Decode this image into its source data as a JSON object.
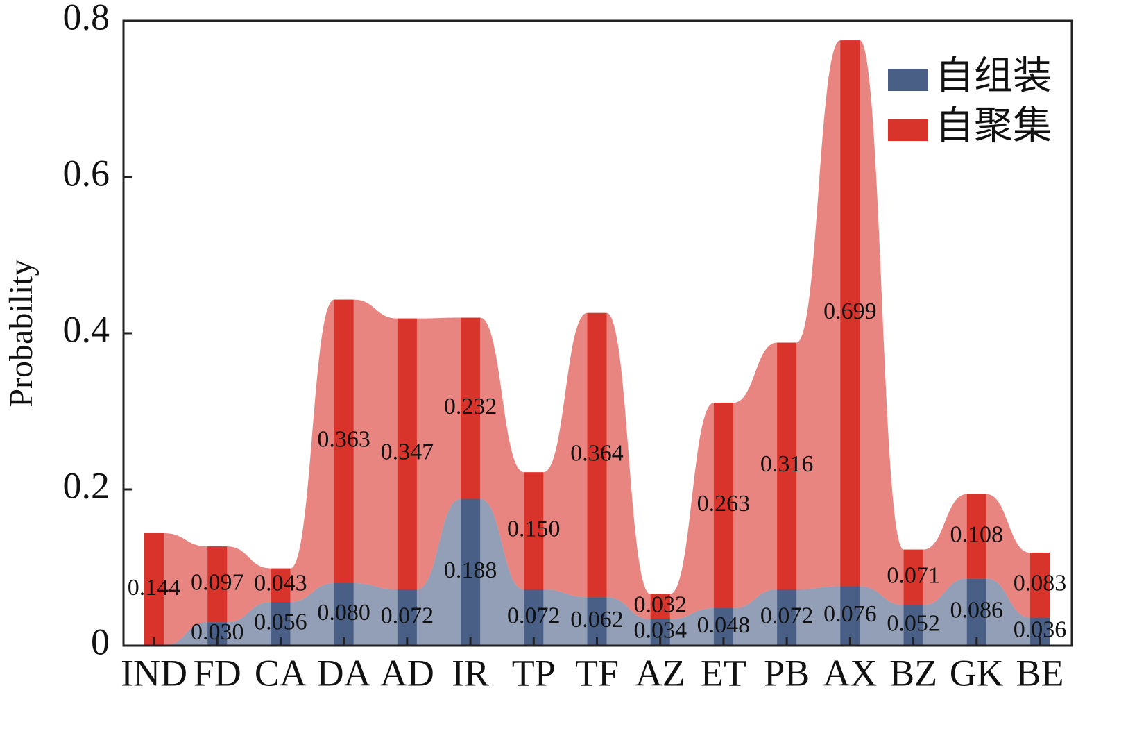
{
  "chart_data": {
    "type": "stacked_area_bar",
    "y_label": "Probability",
    "categories": [
      "IND",
      "FD",
      "CA",
      "DA",
      "AD",
      "IR",
      "TP",
      "TF",
      "AZ",
      "ET",
      "PB",
      "AX",
      "BZ",
      "GK",
      "BE"
    ],
    "series": [
      {
        "name": "自组装",
        "color": "#4a5f85",
        "values": [
          0,
          0.03,
          0.056,
          0.08,
          0.072,
          0.188,
          0.072,
          0.062,
          0.034,
          0.048,
          0.072,
          0.076,
          0.052,
          0.086,
          0.036
        ],
        "value_labels": [
          null,
          "0.030",
          "0.056",
          "0.080",
          "0.072",
          "0.188",
          "0.072",
          "0.062",
          "0.034",
          "0.048",
          "0.072",
          "0.076",
          "0.052",
          "0.086",
          "0.036"
        ]
      },
      {
        "name": "自聚集",
        "color": "#d9342b",
        "values": [
          0.144,
          0.097,
          0.043,
          0.363,
          0.347,
          0.232,
          0.15,
          0.364,
          0.032,
          0.263,
          0.316,
          0.699,
          0.071,
          0.108,
          0.083
        ],
        "value_labels": [
          "0.144",
          "0.097",
          "0.043",
          "0.363",
          "0.347",
          "0.232",
          "0.150",
          "0.364",
          "0.032",
          "0.263",
          "0.316",
          "0.699",
          "0.071",
          "0.108",
          "0.083"
        ]
      }
    ],
    "ylim": [
      0,
      0.8
    ],
    "yticks": [
      0,
      0.2,
      0.4,
      0.6,
      0.8
    ],
    "legend": "upper right"
  }
}
